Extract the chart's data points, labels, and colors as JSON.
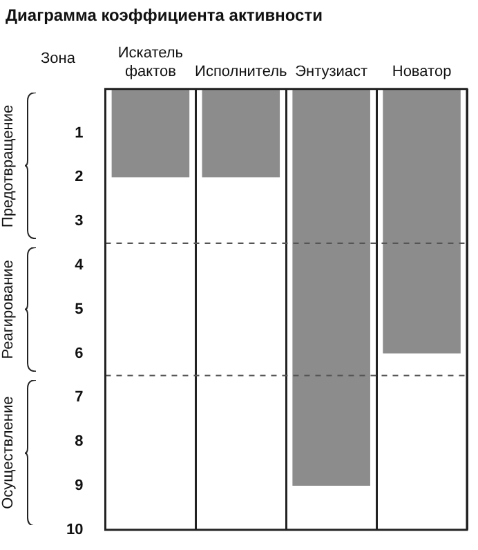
{
  "chart_data": {
    "type": "bar",
    "title": "Диаграмма коэффициента активности",
    "ylabel": "Зона",
    "categories": [
      "Искатель фактов",
      "Исполнитель",
      "Энтузиаст",
      "Новатор"
    ],
    "values": [
      2,
      2,
      9,
      6
    ],
    "color": "#8c8c8c",
    "ylim": [
      10,
      0
    ],
    "yticks": [
      1,
      2,
      3,
      4,
      5,
      6,
      7,
      8,
      9,
      10
    ],
    "grid": "x",
    "ref_lines": [
      {
        "axis": "y",
        "value": 3.5,
        "line_style": "dashed"
      },
      {
        "axis": "y",
        "value": 6.5,
        "line_style": "dashed"
      }
    ],
    "annotations": [
      "Предотвращение",
      "Реагирование",
      "Осуществление"
    ]
  }
}
